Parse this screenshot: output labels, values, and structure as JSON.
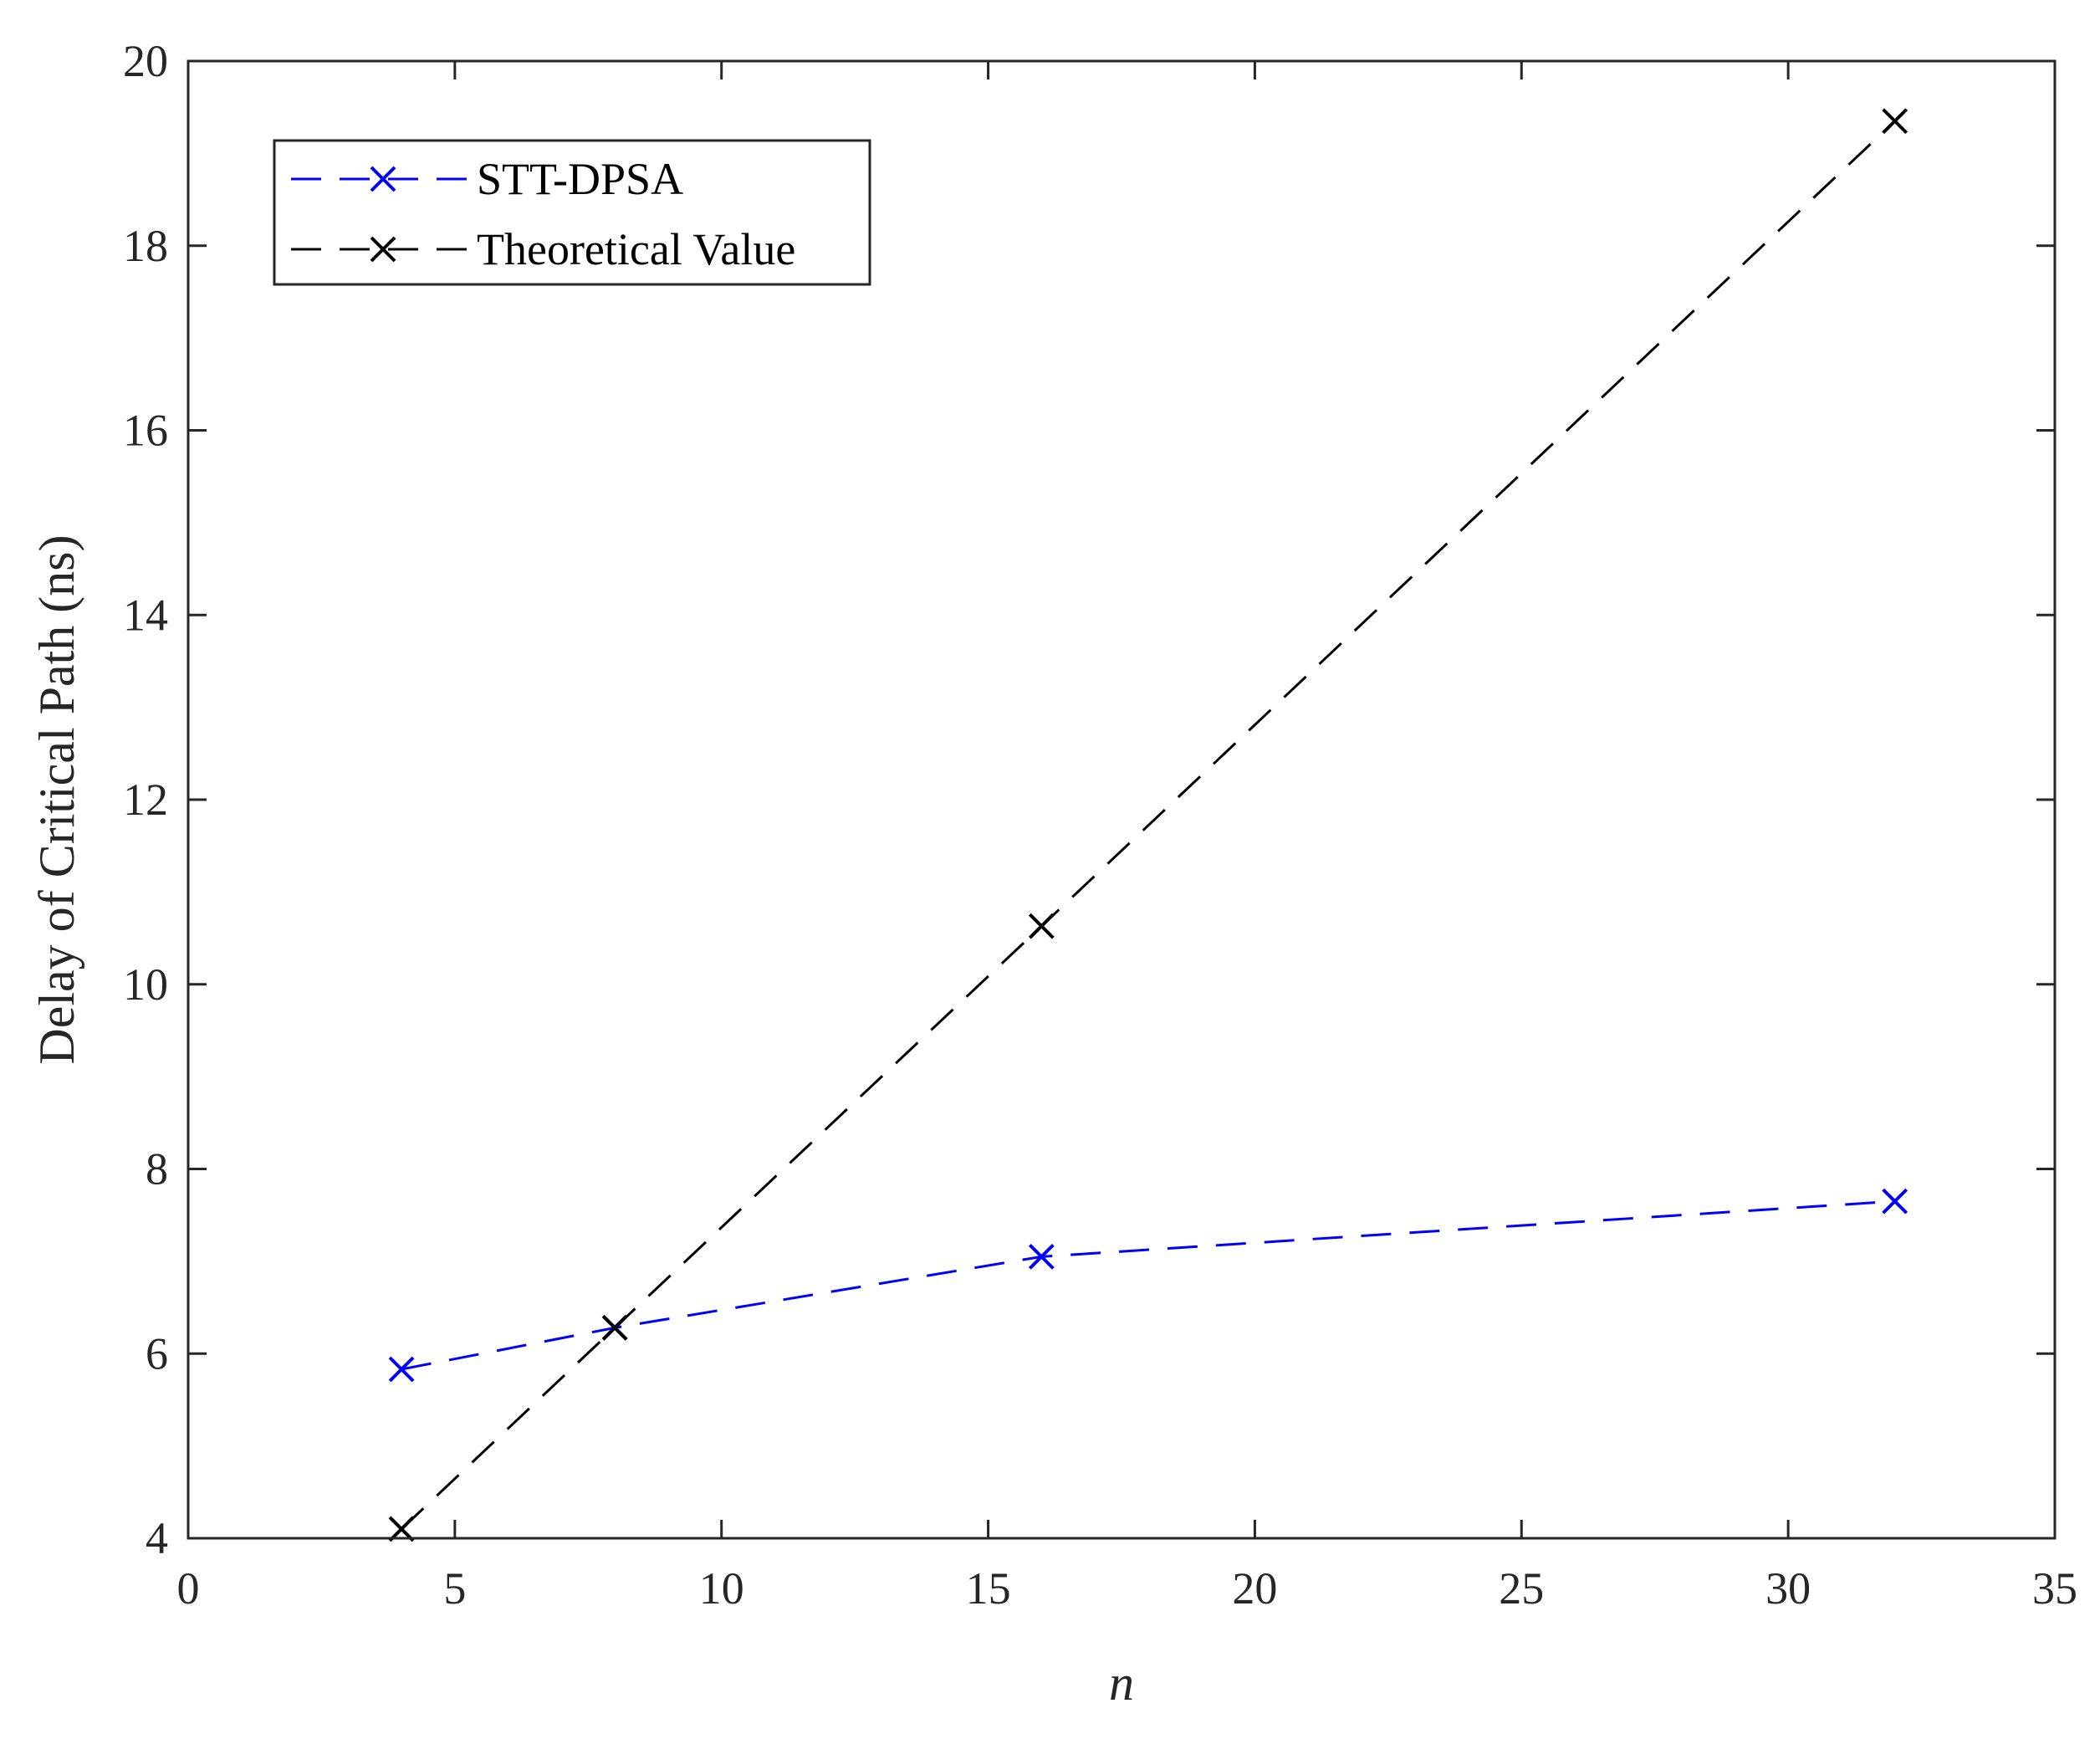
{
  "chart_data": {
    "type": "line",
    "xlabel": "n",
    "ylabel": "Delay of Critical Path (ns)",
    "xlim": [
      0,
      35
    ],
    "ylim": [
      4,
      20
    ],
    "xticks": [
      0,
      5,
      10,
      15,
      20,
      25,
      30,
      35
    ],
    "yticks": [
      4,
      6,
      8,
      10,
      12,
      14,
      16,
      18,
      20
    ],
    "xtick_labels": [
      "0",
      "5",
      "10",
      "15",
      "20",
      "25",
      "30",
      "35"
    ],
    "ytick_labels": [
      "4",
      "6",
      "8",
      "10",
      "12",
      "14",
      "16",
      "18",
      "20"
    ],
    "grid": false,
    "legend_position": "top-left",
    "series": [
      {
        "name": "STT-DPSA",
        "color": "#0000ff",
        "line_style": "dashed",
        "marker": "x",
        "x": [
          4,
          8,
          16,
          32
        ],
        "y": [
          5.83,
          6.28,
          7.05,
          7.65
        ]
      },
      {
        "name": "Theoretical Value",
        "color": "#000000",
        "line_style": "dashed",
        "marker": "x",
        "x": [
          4,
          8,
          16,
          32
        ],
        "y": [
          4.1,
          6.28,
          10.63,
          19.35
        ]
      }
    ]
  }
}
